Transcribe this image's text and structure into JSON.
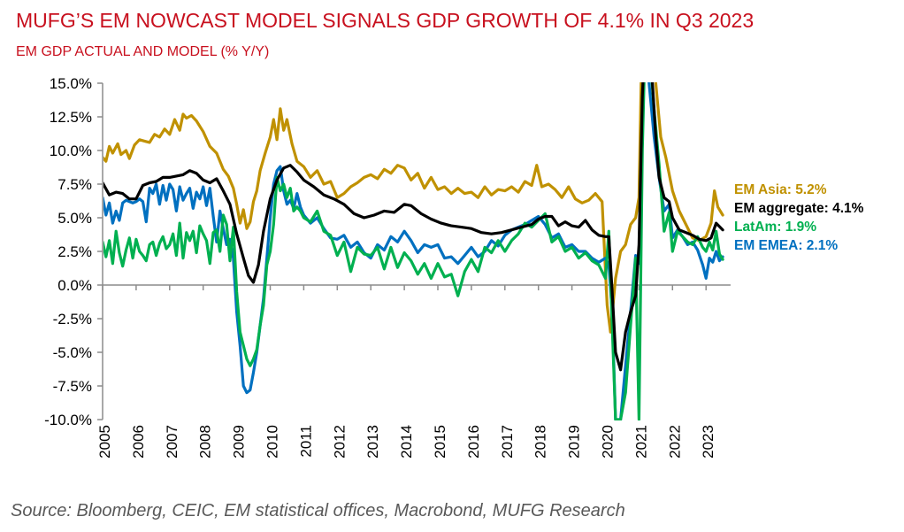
{
  "title": "MUFG’S EM NOWCAST MODEL SIGNALS GDP GROWTH OF 4.1% IN Q3 2023",
  "subtitle": "EM GDP ACTUAL AND MODEL (% Y/Y)",
  "source": "Source: Bloomberg, CEIC, EM statistical offices, Macrobond, MUFG Research",
  "chart_data": {
    "type": "line",
    "title": "MUFG’S EM NOWCAST MODEL SIGNALS GDP GROWTH OF 4.1% IN Q3 2023",
    "subtitle": "EM GDP ACTUAL AND MODEL (% Y/Y)",
    "xlabel": "",
    "ylabel": "",
    "ylim": [
      -10,
      15
    ],
    "xlim": [
      2005,
      2023.6
    ],
    "grid": false,
    "legend_position": "right (inline labels at line ends)",
    "y_ticks": [
      "15.0%",
      "12.5%",
      "10.0%",
      "7.5%",
      "5.0%",
      "2.5%",
      "0.0%",
      "-2.5%",
      "-5.0%",
      "-7.5%",
      "-10.0%"
    ],
    "y_tick_values": [
      15,
      12.5,
      10,
      7.5,
      5,
      2.5,
      0,
      -2.5,
      -5,
      -7.5,
      -10
    ],
    "x_ticks": [
      "2005",
      "2006",
      "2007",
      "2008",
      "2009",
      "2010",
      "2011",
      "2012",
      "2013",
      "2014",
      "2015",
      "2016",
      "2017",
      "2018",
      "2019",
      "2020",
      "2021",
      "2022",
      "2023"
    ],
    "series": [
      {
        "name": "EM Asia",
        "label": "EM Asia: 5.2%",
        "color": "#c09100",
        "x": [
          2005,
          2005.1,
          2005.2,
          2005.3,
          2005.45,
          2005.55,
          2005.7,
          2005.8,
          2005.95,
          2006.1,
          2006.25,
          2006.4,
          2006.55,
          2006.7,
          2006.85,
          2007.0,
          2007.15,
          2007.3,
          2007.4,
          2007.5,
          2007.65,
          2007.8,
          2008.0,
          2008.2,
          2008.4,
          2008.6,
          2008.75,
          2008.9,
          2009.0,
          2009.1,
          2009.2,
          2009.3,
          2009.4,
          2009.5,
          2009.6,
          2009.7,
          2009.85,
          2010.0,
          2010.1,
          2010.2,
          2010.3,
          2010.4,
          2010.5,
          2010.65,
          2010.8,
          2011.0,
          2011.2,
          2011.4,
          2011.6,
          2011.8,
          2012.0,
          2012.2,
          2012.4,
          2012.6,
          2012.8,
          2013.0,
          2013.2,
          2013.4,
          2013.6,
          2013.8,
          2014.0,
          2014.2,
          2014.4,
          2014.6,
          2014.8,
          2015.0,
          2015.2,
          2015.4,
          2015.6,
          2015.8,
          2016.0,
          2016.2,
          2016.4,
          2016.6,
          2016.8,
          2017.0,
          2017.2,
          2017.4,
          2017.6,
          2017.8,
          2017.95,
          2018.1,
          2018.3,
          2018.5,
          2018.7,
          2018.9,
          2019.1,
          2019.3,
          2019.5,
          2019.7,
          2019.9,
          2020.05,
          2020.15,
          2020.3,
          2020.45,
          2020.6,
          2020.75,
          2020.9,
          2021.0,
          2021.1,
          2021.2,
          2021.35,
          2021.5,
          2021.65,
          2021.8,
          2022.0,
          2022.2,
          2022.4,
          2022.6,
          2022.8,
          2023.0,
          2023.15,
          2023.25,
          2023.35,
          2023.5
        ],
        "y": [
          9.5,
          9.2,
          10.3,
          9.8,
          10.5,
          9.7,
          10.0,
          9.4,
          10.4,
          10.8,
          10.7,
          10.6,
          11.2,
          11.0,
          11.6,
          11.2,
          12.3,
          11.5,
          12.7,
          12.4,
          12.6,
          12.2,
          11.4,
          10.3,
          9.8,
          8.6,
          8.1,
          7.2,
          6.0,
          4.6,
          5.6,
          4.2,
          4.7,
          6.2,
          7.0,
          8.5,
          9.8,
          11.0,
          12.3,
          10.8,
          13.1,
          11.5,
          12.3,
          10.5,
          9.2,
          8.8,
          8.0,
          8.5,
          7.5,
          7.7,
          6.5,
          6.8,
          7.3,
          7.6,
          8.0,
          8.2,
          7.9,
          8.6,
          8.3,
          8.9,
          8.7,
          7.8,
          8.3,
          7.2,
          8.0,
          7.1,
          7.3,
          6.8,
          7.2,
          6.8,
          6.9,
          6.5,
          7.3,
          6.7,
          7.1,
          7.0,
          7.3,
          6.9,
          7.7,
          7.4,
          8.9,
          7.3,
          7.5,
          7.1,
          6.5,
          7.3,
          6.4,
          6.1,
          6.3,
          6.8,
          6.2,
          -1.5,
          -3.5,
          0.5,
          2.5,
          3.0,
          4.5,
          5.0,
          6.5,
          20,
          20,
          20,
          15,
          11,
          9.5,
          7.0,
          5.5,
          4.5,
          3.5,
          3.3,
          3.6,
          4.6,
          7.0,
          5.8,
          5.2
        ]
      },
      {
        "name": "EM aggregate",
        "label": "EM aggregate: 4.1%",
        "color": "#000000",
        "x": [
          2005,
          2005.2,
          2005.4,
          2005.6,
          2005.8,
          2006.0,
          2006.2,
          2006.4,
          2006.6,
          2006.8,
          2007.0,
          2007.2,
          2007.4,
          2007.6,
          2007.8,
          2008.0,
          2008.2,
          2008.4,
          2008.6,
          2008.8,
          2009.0,
          2009.2,
          2009.35,
          2009.5,
          2009.65,
          2009.8,
          2010.0,
          2010.2,
          2010.4,
          2010.6,
          2010.8,
          2011.0,
          2011.3,
          2011.6,
          2011.9,
          2012.2,
          2012.5,
          2012.8,
          2013.1,
          2013.4,
          2013.7,
          2014.0,
          2014.2,
          2014.5,
          2014.8,
          2015.1,
          2015.4,
          2015.7,
          2016.0,
          2016.3,
          2016.6,
          2016.9,
          2017.2,
          2017.5,
          2017.8,
          2018.0,
          2018.2,
          2018.4,
          2018.6,
          2018.8,
          2019.0,
          2019.2,
          2019.4,
          2019.6,
          2019.8,
          2020.0,
          2020.1,
          2020.2,
          2020.3,
          2020.45,
          2020.6,
          2020.75,
          2020.9,
          2021.0,
          2021.1,
          2021.2,
          2021.35,
          2021.5,
          2021.6,
          2021.75,
          2021.9,
          2022.0,
          2022.2,
          2022.4,
          2022.6,
          2022.8,
          2023.0,
          2023.15,
          2023.3,
          2023.5
        ],
        "y": [
          7.6,
          6.7,
          6.9,
          6.8,
          6.4,
          6.4,
          7.4,
          7.6,
          7.7,
          8.0,
          8.0,
          8.1,
          8.2,
          8.5,
          8.3,
          7.8,
          7.6,
          7.9,
          7.0,
          6.0,
          3.8,
          2.0,
          0.7,
          0.2,
          1.5,
          4.0,
          6.4,
          7.8,
          8.7,
          8.9,
          8.4,
          7.8,
          7.3,
          6.7,
          6.4,
          6.0,
          5.3,
          5.0,
          5.2,
          5.5,
          5.4,
          6.0,
          5.9,
          5.3,
          4.9,
          4.6,
          4.4,
          4.3,
          4.2,
          3.9,
          3.8,
          3.9,
          4.1,
          4.3,
          4.5,
          4.9,
          5.1,
          5.1,
          4.4,
          4.7,
          4.4,
          4.3,
          4.8,
          4.1,
          3.7,
          3.6,
          3.6,
          -0.5,
          -5.0,
          -6.3,
          -3.5,
          -2.0,
          -0.8,
          3.0,
          14.0,
          20,
          17,
          11,
          8.0,
          6.5,
          6.2,
          5.0,
          4.1,
          3.9,
          3.7,
          3.4,
          3.3,
          3.5,
          4.6,
          4.1
        ]
      },
      {
        "name": "LatAm",
        "label": "LatAm: 1.9%",
        "color": "#00b050",
        "x": [
          2005,
          2005.1,
          2005.2,
          2005.3,
          2005.4,
          2005.5,
          2005.6,
          2005.7,
          2005.8,
          2005.9,
          2006.0,
          2006.1,
          2006.2,
          2006.3,
          2006.4,
          2006.5,
          2006.6,
          2006.7,
          2006.8,
          2006.9,
          2007.0,
          2007.1,
          2007.2,
          2007.3,
          2007.4,
          2007.5,
          2007.6,
          2007.7,
          2007.8,
          2007.9,
          2008.0,
          2008.1,
          2008.2,
          2008.3,
          2008.4,
          2008.5,
          2008.6,
          2008.7,
          2008.8,
          2008.9,
          2009.0,
          2009.1,
          2009.2,
          2009.3,
          2009.4,
          2009.5,
          2009.6,
          2009.7,
          2009.8,
          2009.9,
          2010.0,
          2010.1,
          2010.2,
          2010.3,
          2010.4,
          2010.5,
          2010.6,
          2010.7,
          2010.8,
          2010.9,
          2011.0,
          2011.2,
          2011.4,
          2011.6,
          2011.8,
          2012.0,
          2012.2,
          2012.4,
          2012.6,
          2012.8,
          2013.0,
          2013.2,
          2013.4,
          2013.6,
          2013.8,
          2014.0,
          2014.2,
          2014.4,
          2014.6,
          2014.8,
          2015.0,
          2015.2,
          2015.4,
          2015.6,
          2015.8,
          2016.0,
          2016.2,
          2016.4,
          2016.6,
          2016.8,
          2017.0,
          2017.2,
          2017.4,
          2017.6,
          2017.8,
          2018.0,
          2018.2,
          2018.4,
          2018.6,
          2018.8,
          2019.0,
          2019.2,
          2019.4,
          2019.6,
          2019.8,
          2020.0,
          2020.1,
          2020.2,
          2020.3,
          2020.45,
          2020.6,
          2020.75,
          2020.9,
          2021.0,
          2021.1,
          2021.2,
          2021.3,
          2021.45,
          2021.6,
          2021.75,
          2021.9,
          2022.0,
          2022.15,
          2022.3,
          2022.45,
          2022.6,
          2022.75,
          2022.9,
          2023.0,
          2023.1,
          2023.2,
          2023.3,
          2023.4,
          2023.5
        ],
        "y": [
          3.2,
          2.1,
          3.3,
          1.6,
          4.0,
          2.4,
          1.4,
          2.6,
          3.5,
          2.0,
          3.4,
          2.5,
          2.2,
          1.8,
          3.0,
          3.2,
          2.2,
          3.1,
          3.6,
          2.7,
          3.0,
          3.8,
          2.2,
          4.6,
          2.0,
          3.9,
          3.3,
          4.0,
          2.4,
          4.4,
          3.8,
          3.3,
          1.6,
          3.9,
          4.1,
          2.5,
          5.2,
          4.5,
          1.8,
          4.3,
          -0.5,
          -3.5,
          -4.5,
          -5.5,
          -6.0,
          -5.5,
          -4.8,
          -3.0,
          -1.5,
          1.5,
          2.5,
          4.5,
          8.0,
          7.0,
          7.5,
          6.5,
          7.2,
          5.5,
          5.8,
          5.5,
          5.0,
          4.7,
          5.5,
          4.0,
          3.7,
          2.2,
          3.2,
          1.0,
          2.8,
          2.3,
          2.2,
          2.8,
          1.2,
          2.8,
          1.3,
          2.4,
          1.8,
          0.8,
          1.6,
          0.5,
          1.6,
          0.6,
          0.8,
          -0.8,
          1.0,
          1.9,
          1.0,
          2.8,
          2.4,
          3.3,
          2.5,
          3.3,
          3.8,
          4.6,
          4.3,
          4.8,
          5.3,
          3.2,
          3.6,
          2.5,
          2.8,
          2.0,
          2.4,
          1.8,
          1.5,
          0.5,
          4.0,
          -3,
          -10,
          -10,
          -8,
          -3,
          2.0,
          -10,
          10,
          20,
          18,
          13,
          9,
          4.0,
          5.4,
          2.5,
          4.0,
          3.6,
          3.2,
          3.0,
          3.6,
          2.8,
          2.5,
          3.2,
          2.6,
          4.0,
          2.3,
          1.9
        ]
      },
      {
        "name": "EM EMEA",
        "label": "EM EMEA: 2.1%",
        "color": "#0070c0",
        "x": [
          2005,
          2005.1,
          2005.2,
          2005.3,
          2005.4,
          2005.5,
          2005.6,
          2005.7,
          2005.8,
          2005.9,
          2006.0,
          2006.1,
          2006.2,
          2006.3,
          2006.4,
          2006.5,
          2006.6,
          2006.7,
          2006.8,
          2006.9,
          2007.0,
          2007.1,
          2007.2,
          2007.3,
          2007.4,
          2007.5,
          2007.6,
          2007.7,
          2007.8,
          2007.9,
          2008.0,
          2008.1,
          2008.2,
          2008.3,
          2008.4,
          2008.5,
          2008.6,
          2008.7,
          2008.8,
          2008.9,
          2009.0,
          2009.1,
          2009.2,
          2009.3,
          2009.4,
          2009.5,
          2009.6,
          2009.7,
          2009.8,
          2009.9,
          2010.0,
          2010.1,
          2010.2,
          2010.3,
          2010.4,
          2010.5,
          2010.6,
          2010.7,
          2010.8,
          2010.9,
          2011.0,
          2011.2,
          2011.4,
          2011.6,
          2011.8,
          2012.0,
          2012.2,
          2012.4,
          2012.6,
          2012.8,
          2013.0,
          2013.2,
          2013.4,
          2013.6,
          2013.8,
          2014.0,
          2014.2,
          2014.4,
          2014.6,
          2014.8,
          2015.0,
          2015.2,
          2015.4,
          2015.6,
          2015.8,
          2016.0,
          2016.2,
          2016.4,
          2016.6,
          2016.8,
          2017.0,
          2017.2,
          2017.4,
          2017.6,
          2017.8,
          2018.0,
          2018.2,
          2018.4,
          2018.6,
          2018.8,
          2019.0,
          2019.2,
          2019.4,
          2019.6,
          2019.8,
          2020.0,
          2020.1,
          2020.2,
          2020.3,
          2020.45,
          2020.6,
          2020.75,
          2020.9,
          2021.0,
          2021.1,
          2021.2,
          2021.3,
          2021.45,
          2021.6,
          2021.75,
          2021.9,
          2022.0,
          2022.15,
          2022.3,
          2022.45,
          2022.6,
          2022.75,
          2022.9,
          2023.0,
          2023.1,
          2023.2,
          2023.3,
          2023.4,
          2023.5
        ],
        "y": [
          6.5,
          5.2,
          6.1,
          4.6,
          5.5,
          4.8,
          6.1,
          6.3,
          6.2,
          6.1,
          6.2,
          6.4,
          6.2,
          4.7,
          7.2,
          6.8,
          7.5,
          6.0,
          7.4,
          6.3,
          7.5,
          7.1,
          5.5,
          7.3,
          6.3,
          6.8,
          7.2,
          5.7,
          6.9,
          6.4,
          7.3,
          5.9,
          7.2,
          5.1,
          3.2,
          5.5,
          4.2,
          3.0,
          3.4,
          2.0,
          -2.0,
          -4.5,
          -7.5,
          -8.0,
          -7.8,
          -6.5,
          -5.0,
          -3.0,
          -1.0,
          2.0,
          5.0,
          7.5,
          8.5,
          8.8,
          7.0,
          6.0,
          6.3,
          5.7,
          6.8,
          5.8,
          5.2,
          4.6,
          5.0,
          4.2,
          3.5,
          3.4,
          3.7,
          2.8,
          3.2,
          2.4,
          2.0,
          3.0,
          2.6,
          3.6,
          3.2,
          4.0,
          3.3,
          2.4,
          3.0,
          2.8,
          3.0,
          2.0,
          2.1,
          1.6,
          2.2,
          2.8,
          2.1,
          2.5,
          3.3,
          2.9,
          3.7,
          4.1,
          4.3,
          4.5,
          4.8,
          5.1,
          4.5,
          3.5,
          3.8,
          2.8,
          3.0,
          2.5,
          2.5,
          2.0,
          1.7,
          2.0,
          1.5,
          -2,
          -10,
          -10,
          -6,
          -2.0,
          2.2,
          1.6,
          12,
          20,
          15,
          11,
          8,
          5.5,
          6.0,
          3.5,
          4.1,
          3.6,
          3.0,
          3.2,
          2.6,
          1.5,
          0.5,
          2.0,
          1.7,
          2.5,
          1.8,
          2.1
        ]
      }
    ]
  }
}
